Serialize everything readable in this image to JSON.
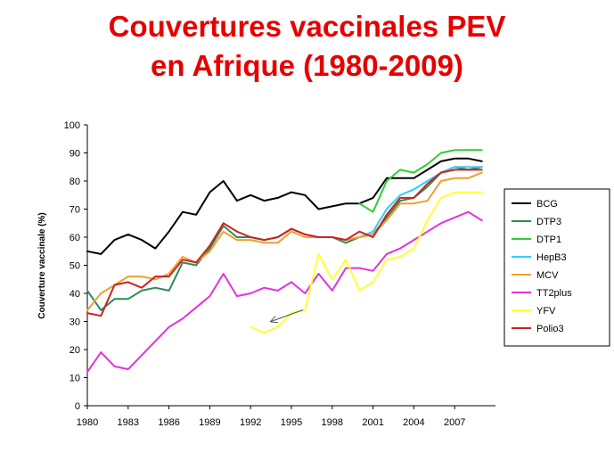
{
  "slide": {
    "title_line1": "Couvertures vaccinales PEV",
    "title_line2": "en Afrique (1980-2009)"
  },
  "chart_data": {
    "type": "line",
    "title": "Couvertures vaccinales PEV en Afrique (1980-2009)",
    "ylabel": "Couverture vaccinale (%)",
    "xlabel": "",
    "xlim": [
      1980,
      2010
    ],
    "ylim": [
      0,
      100
    ],
    "x_ticks": [
      1980,
      1983,
      1986,
      1989,
      1992,
      1995,
      1998,
      2001,
      2004,
      2007
    ],
    "y_ticks": [
      0,
      10,
      20,
      30,
      40,
      50,
      60,
      70,
      80,
      90,
      100
    ],
    "grid": false,
    "legend_position": "right",
    "series": [
      {
        "name": "BCG",
        "color": "#000000",
        "points": [
          [
            1980,
            55
          ],
          [
            1981,
            54
          ],
          [
            1982,
            59
          ],
          [
            1983,
            61
          ],
          [
            1984,
            59
          ],
          [
            1985,
            56
          ],
          [
            1986,
            62
          ],
          [
            1987,
            69
          ],
          [
            1988,
            68
          ],
          [
            1989,
            76
          ],
          [
            1990,
            80
          ],
          [
            1991,
            73
          ],
          [
            1992,
            75
          ],
          [
            1993,
            73
          ],
          [
            1994,
            74
          ],
          [
            1995,
            76
          ],
          [
            1996,
            75
          ],
          [
            1997,
            70
          ],
          [
            1998,
            71
          ],
          [
            1999,
            72
          ],
          [
            2000,
            72
          ],
          [
            2001,
            74
          ],
          [
            2002,
            81
          ],
          [
            2003,
            81
          ],
          [
            2004,
            81
          ],
          [
            2005,
            84
          ],
          [
            2006,
            87
          ],
          [
            2007,
            88
          ],
          [
            2008,
            88
          ],
          [
            2009,
            87
          ]
        ]
      },
      {
        "name": "DTP3",
        "color": "#2e8b57",
        "points": [
          [
            1980,
            41
          ],
          [
            1981,
            34
          ],
          [
            1982,
            38
          ],
          [
            1983,
            38
          ],
          [
            1984,
            41
          ],
          [
            1985,
            42
          ],
          [
            1986,
            41
          ],
          [
            1987,
            51
          ],
          [
            1988,
            50
          ],
          [
            1989,
            56
          ],
          [
            1990,
            64
          ],
          [
            1991,
            60
          ],
          [
            1992,
            60
          ],
          [
            1993,
            59
          ],
          [
            1994,
            60
          ],
          [
            1995,
            63
          ],
          [
            1996,
            61
          ],
          [
            1997,
            60
          ],
          [
            1998,
            60
          ],
          [
            1999,
            58
          ],
          [
            2000,
            60
          ],
          [
            2001,
            61
          ],
          [
            2002,
            67
          ],
          [
            2003,
            73
          ],
          [
            2004,
            74
          ],
          [
            2005,
            78
          ],
          [
            2006,
            83
          ],
          [
            2007,
            85
          ],
          [
            2008,
            84
          ],
          [
            2009,
            85
          ]
        ]
      },
      {
        "name": "DTP1",
        "color": "#33cc33",
        "points": [
          [
            2000,
            72
          ],
          [
            2001,
            69
          ],
          [
            2002,
            80
          ],
          [
            2003,
            84
          ],
          [
            2004,
            83
          ],
          [
            2005,
            86
          ],
          [
            2006,
            90
          ],
          [
            2007,
            91
          ],
          [
            2008,
            91
          ],
          [
            2009,
            91
          ]
        ]
      },
      {
        "name": "HepB3",
        "color": "#33ccff",
        "points": [
          [
            2000,
            60
          ],
          [
            2001,
            62
          ],
          [
            2002,
            70
          ],
          [
            2003,
            75
          ],
          [
            2004,
            77
          ],
          [
            2005,
            80
          ],
          [
            2006,
            83
          ],
          [
            2007,
            85
          ],
          [
            2008,
            85
          ],
          [
            2009,
            85
          ]
        ]
      },
      {
        "name": "MCV",
        "color": "#f0a030",
        "points": [
          [
            1980,
            34
          ],
          [
            1981,
            40
          ],
          [
            1982,
            43
          ],
          [
            1983,
            46
          ],
          [
            1984,
            46
          ],
          [
            1985,
            45
          ],
          [
            1986,
            47
          ],
          [
            1987,
            53
          ],
          [
            1988,
            51
          ],
          [
            1989,
            55
          ],
          [
            1990,
            62
          ],
          [
            1991,
            59
          ],
          [
            1992,
            59
          ],
          [
            1993,
            58
          ],
          [
            1994,
            58
          ],
          [
            1995,
            62
          ],
          [
            1996,
            60
          ],
          [
            1997,
            60
          ],
          [
            1998,
            60
          ],
          [
            1999,
            59
          ],
          [
            2000,
            60
          ],
          [
            2001,
            61
          ],
          [
            2002,
            66
          ],
          [
            2003,
            72
          ],
          [
            2004,
            72
          ],
          [
            2005,
            73
          ],
          [
            2006,
            80
          ],
          [
            2007,
            81
          ],
          [
            2008,
            81
          ],
          [
            2009,
            83
          ]
        ]
      },
      {
        "name": "TT2plus",
        "color": "#e033e0",
        "points": [
          [
            1980,
            12
          ],
          [
            1981,
            19
          ],
          [
            1982,
            14
          ],
          [
            1983,
            13
          ],
          [
            1984,
            18
          ],
          [
            1985,
            23
          ],
          [
            1986,
            28
          ],
          [
            1987,
            31
          ],
          [
            1988,
            35
          ],
          [
            1989,
            39
          ],
          [
            1990,
            47
          ],
          [
            1991,
            39
          ],
          [
            1992,
            40
          ],
          [
            1993,
            42
          ],
          [
            1994,
            41
          ],
          [
            1995,
            44
          ],
          [
            1996,
            40
          ],
          [
            1997,
            47
          ],
          [
            1998,
            41
          ],
          [
            1999,
            49
          ],
          [
            2000,
            49
          ],
          [
            2001,
            48
          ],
          [
            2002,
            54
          ],
          [
            2003,
            56
          ],
          [
            2004,
            59
          ],
          [
            2005,
            62
          ],
          [
            2006,
            65
          ],
          [
            2007,
            67
          ],
          [
            2008,
            69
          ],
          [
            2009,
            66
          ]
        ]
      },
      {
        "name": "YFV",
        "color": "#ffff33",
        "points": [
          [
            1992,
            28
          ],
          [
            1993,
            26
          ],
          [
            1994,
            28
          ],
          [
            1995,
            33
          ],
          [
            1996,
            34
          ],
          [
            1997,
            54
          ],
          [
            1998,
            45
          ],
          [
            1999,
            52
          ],
          [
            2000,
            41
          ],
          [
            2001,
            44
          ],
          [
            2002,
            52
          ],
          [
            2003,
            53
          ],
          [
            2004,
            56
          ],
          [
            2005,
            66
          ],
          [
            2006,
            74
          ],
          [
            2007,
            76
          ],
          [
            2008,
            76
          ],
          [
            2009,
            76
          ]
        ]
      },
      {
        "name": "Polio3",
        "color": "#cc2222",
        "points": [
          [
            1980,
            33
          ],
          [
            1981,
            32
          ],
          [
            1982,
            43
          ],
          [
            1983,
            44
          ],
          [
            1984,
            42
          ],
          [
            1985,
            46
          ],
          [
            1986,
            46
          ],
          [
            1987,
            52
          ],
          [
            1988,
            51
          ],
          [
            1989,
            57
          ],
          [
            1990,
            65
          ],
          [
            1991,
            62
          ],
          [
            1992,
            60
          ],
          [
            1993,
            59
          ],
          [
            1994,
            60
          ],
          [
            1995,
            63
          ],
          [
            1996,
            61
          ],
          [
            1997,
            60
          ],
          [
            1998,
            60
          ],
          [
            1999,
            59
          ],
          [
            2000,
            62
          ],
          [
            2001,
            60
          ],
          [
            2002,
            68
          ],
          [
            2003,
            74
          ],
          [
            2004,
            74
          ],
          [
            2005,
            79
          ],
          [
            2006,
            83
          ],
          [
            2007,
            84
          ],
          [
            2008,
            84
          ],
          [
            2009,
            84
          ]
        ]
      }
    ],
    "annotations": [
      {
        "type": "arrow",
        "points_to": [
          1993.5,
          30
        ],
        "color": "#555555"
      }
    ]
  }
}
